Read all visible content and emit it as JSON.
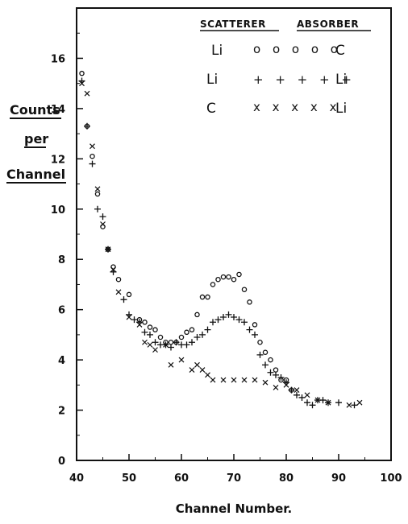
{
  "chart_data": {
    "type": "scatter",
    "xlabel": "Channel Number.",
    "ylabel_lines": [
      "Counts",
      "per",
      "Channel"
    ],
    "xlim": [
      40,
      100
    ],
    "ylim": [
      0,
      18
    ],
    "x_ticks": [
      40,
      50,
      60,
      70,
      80,
      90,
      100
    ],
    "y_ticks": [
      0,
      2,
      4,
      6,
      8,
      10,
      12,
      14,
      16
    ],
    "legend": {
      "header_left": "SCATTERER",
      "header_right": "ABSORBER",
      "rows": [
        {
          "scatterer": "Li",
          "symbols": "o o o o o",
          "absorber": "C"
        },
        {
          "scatterer": "Li",
          "symbols": "+ + + + +",
          "absorber": "Li"
        },
        {
          "scatterer": "C",
          "symbols": "x x x x x",
          "absorber": "Li"
        }
      ]
    },
    "series": [
      {
        "marker": "circle",
        "points": [
          [
            41,
            15.4
          ],
          [
            42,
            13.3
          ],
          [
            43,
            12.1
          ],
          [
            44,
            10.6
          ],
          [
            45,
            9.3
          ],
          [
            46,
            8.4
          ],
          [
            47,
            7.7
          ],
          [
            48,
            7.2
          ],
          [
            50,
            6.6
          ],
          [
            52,
            5.6
          ],
          [
            53,
            5.5
          ],
          [
            54,
            5.3
          ],
          [
            55,
            5.2
          ],
          [
            56,
            4.9
          ],
          [
            57,
            4.7
          ],
          [
            58,
            4.7
          ],
          [
            59,
            4.7
          ],
          [
            60,
            4.9
          ],
          [
            61,
            5.1
          ],
          [
            62,
            5.2
          ],
          [
            63,
            5.8
          ],
          [
            64,
            6.5
          ],
          [
            65,
            6.5
          ],
          [
            66,
            7.0
          ],
          [
            67,
            7.2
          ],
          [
            68,
            7.3
          ],
          [
            69,
            7.3
          ],
          [
            70,
            7.2
          ],
          [
            71,
            7.4
          ],
          [
            72,
            6.8
          ],
          [
            73,
            6.3
          ],
          [
            74,
            5.4
          ],
          [
            75,
            4.7
          ],
          [
            76,
            4.3
          ],
          [
            77,
            4.0
          ],
          [
            78,
            3.6
          ],
          [
            79,
            3.2
          ],
          [
            80,
            3.2
          ],
          [
            81,
            2.8
          ]
        ]
      },
      {
        "marker": "plus",
        "points": [
          [
            41,
            15.1
          ],
          [
            42,
            13.3
          ],
          [
            43,
            11.8
          ],
          [
            44,
            10.0
          ],
          [
            45,
            9.7
          ],
          [
            46,
            8.4
          ],
          [
            47,
            7.5
          ],
          [
            49,
            6.4
          ],
          [
            50,
            5.8
          ],
          [
            51,
            5.6
          ],
          [
            52,
            5.5
          ],
          [
            53,
            5.1
          ],
          [
            54,
            5.0
          ],
          [
            55,
            4.7
          ],
          [
            56,
            4.6
          ],
          [
            57,
            4.6
          ],
          [
            58,
            4.5
          ],
          [
            59,
            4.7
          ],
          [
            60,
            4.6
          ],
          [
            61,
            4.6
          ],
          [
            62,
            4.7
          ],
          [
            63,
            4.9
          ],
          [
            64,
            5.0
          ],
          [
            65,
            5.2
          ],
          [
            66,
            5.5
          ],
          [
            67,
            5.6
          ],
          [
            68,
            5.7
          ],
          [
            69,
            5.8
          ],
          [
            70,
            5.7
          ],
          [
            71,
            5.6
          ],
          [
            72,
            5.5
          ],
          [
            73,
            5.2
          ],
          [
            74,
            5.0
          ],
          [
            75,
            4.2
          ],
          [
            76,
            3.8
          ],
          [
            77,
            3.5
          ],
          [
            78,
            3.4
          ],
          [
            79,
            3.3
          ],
          [
            80,
            3.1
          ],
          [
            81,
            2.8
          ],
          [
            82,
            2.6
          ],
          [
            83,
            2.5
          ],
          [
            84,
            2.3
          ],
          [
            85,
            2.2
          ],
          [
            86,
            2.4
          ],
          [
            87,
            2.4
          ],
          [
            88,
            2.3
          ],
          [
            90,
            2.3
          ],
          [
            93,
            2.2
          ]
        ]
      },
      {
        "marker": "cross",
        "points": [
          [
            41,
            15.0
          ],
          [
            42,
            14.6
          ],
          [
            43,
            12.5
          ],
          [
            44,
            10.8
          ],
          [
            45,
            9.4
          ],
          [
            46,
            8.4
          ],
          [
            47,
            7.6
          ],
          [
            48,
            6.7
          ],
          [
            50,
            5.7
          ],
          [
            52,
            5.4
          ],
          [
            53,
            4.7
          ],
          [
            54,
            4.6
          ],
          [
            55,
            4.4
          ],
          [
            57,
            4.6
          ],
          [
            58,
            3.8
          ],
          [
            60,
            4.0
          ],
          [
            62,
            3.6
          ],
          [
            63,
            3.8
          ],
          [
            64,
            3.6
          ],
          [
            65,
            3.4
          ],
          [
            66,
            3.2
          ],
          [
            68,
            3.2
          ],
          [
            70,
            3.2
          ],
          [
            72,
            3.2
          ],
          [
            74,
            3.2
          ],
          [
            76,
            3.1
          ],
          [
            78,
            2.9
          ],
          [
            80,
            3.0
          ],
          [
            82,
            2.8
          ],
          [
            84,
            2.6
          ],
          [
            86,
            2.4
          ],
          [
            88,
            2.3
          ],
          [
            92,
            2.2
          ],
          [
            94,
            2.3
          ]
        ]
      }
    ]
  }
}
